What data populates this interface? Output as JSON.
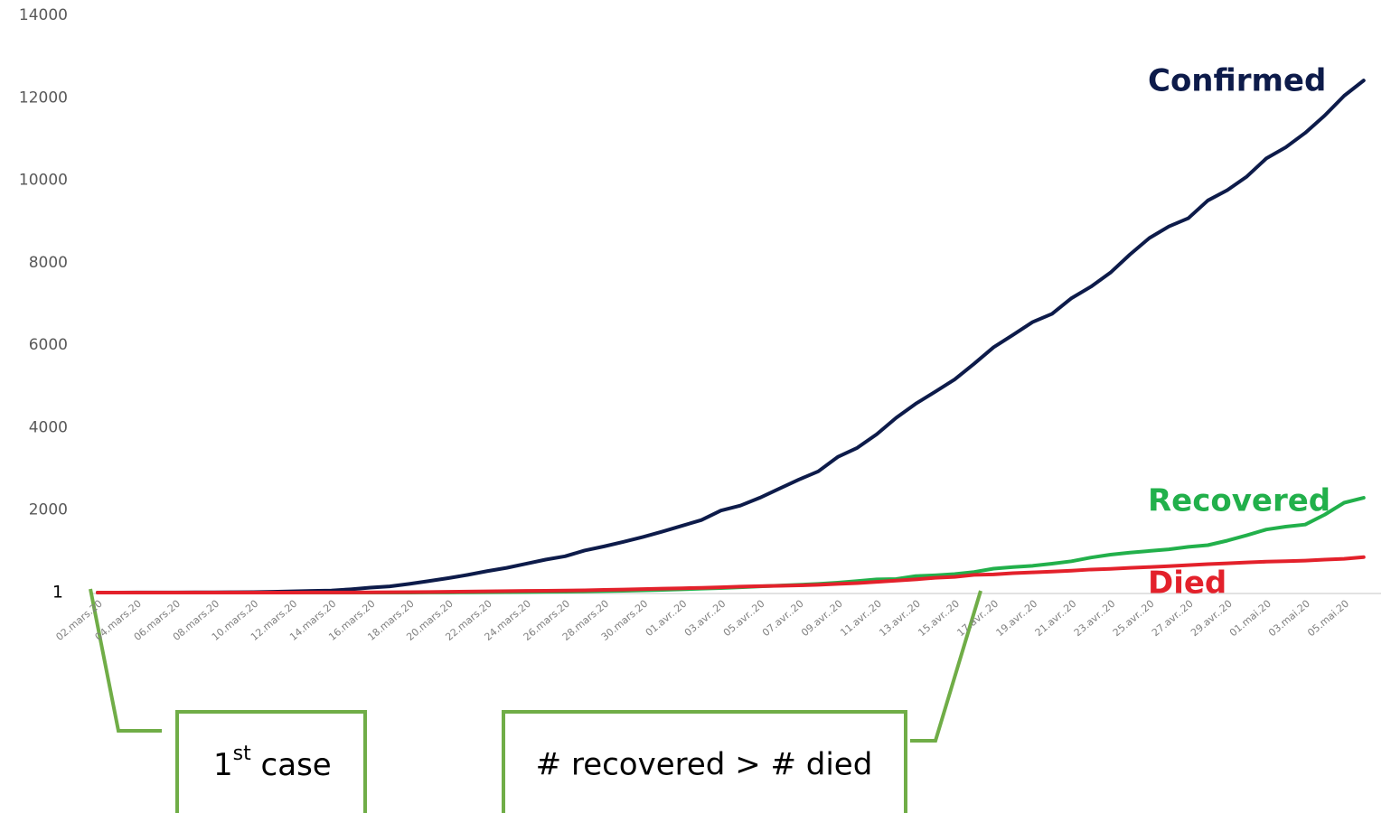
{
  "chart_data": {
    "type": "line",
    "categories": [
      "02.mars.20",
      null,
      "04.mars.20",
      null,
      "06.mars.20",
      null,
      "08.mars.20",
      null,
      "10.mars.20",
      null,
      "12.mars.20",
      null,
      "14.mars.20",
      null,
      "16.mars.20",
      null,
      "18.mars.20",
      null,
      "20.mars.20",
      null,
      "22.mars.20",
      null,
      "24.mars.20",
      null,
      "26.mars.20",
      null,
      "28.mars.20",
      null,
      "30.mars.20",
      null,
      "01.avr..20",
      null,
      "03.avr..20",
      null,
      "05.avr..20",
      null,
      "07.avr..20",
      null,
      "09.avr..20",
      null,
      "11.avr..20",
      null,
      "13.avr..20",
      null,
      "15.avr..20",
      null,
      "17.avr..20",
      null,
      "19.avr..20",
      null,
      "21.avr..20",
      null,
      "23.avr..20",
      null,
      "25.avr..20",
      null,
      "27.avr..20",
      null,
      "29.avr..20",
      null,
      "01.mai.20",
      null,
      "03.mai.20",
      null,
      "05.mai.20",
      null
    ],
    "series": [
      {
        "name": "Confirmed",
        "color": "#0d1b4a",
        "values": [
          1,
          1,
          2,
          2,
          3,
          5,
          6,
          8,
          10,
          20,
          30,
          40,
          50,
          80,
          120,
          150,
          210,
          280,
          350,
          430,
          520,
          600,
          700,
          800,
          880,
          1020,
          1120,
          1230,
          1350,
          1480,
          1620,
          1760,
          1990,
          2110,
          2300,
          2520,
          2740,
          2940,
          3290,
          3510,
          3840,
          4240,
          4580,
          4870,
          5170,
          5550,
          5950,
          6250,
          6560,
          6760,
          7140,
          7420,
          7760,
          8200,
          8600,
          8880,
          9080,
          9510,
          9760,
          10090,
          10530,
          10800,
          11150,
          11570,
          12050,
          12420
        ]
      },
      {
        "name": "Recovered",
        "color": "#22b04b",
        "values": [
          0,
          0,
          0,
          0,
          0,
          0,
          0,
          0,
          0,
          0,
          0,
          0,
          0,
          0,
          0,
          1,
          1,
          2,
          3,
          5,
          8,
          10,
          14,
          18,
          22,
          28,
          35,
          45,
          55,
          65,
          80,
          95,
          110,
          130,
          150,
          170,
          190,
          210,
          240,
          280,
          320,
          330,
          400,
          420,
          450,
          500,
          580,
          620,
          650,
          700,
          760,
          850,
          920,
          970,
          1010,
          1050,
          1110,
          1150,
          1260,
          1390,
          1530,
          1600,
          1650,
          1890,
          2180,
          2300
        ]
      },
      {
        "name": "Died",
        "color": "#e3212b",
        "values": [
          0,
          0,
          0,
          0,
          0,
          0,
          0,
          0,
          0,
          0,
          1,
          2,
          3,
          4,
          5,
          8,
          10,
          15,
          20,
          25,
          30,
          35,
          40,
          45,
          50,
          55,
          65,
          75,
          85,
          95,
          105,
          115,
          130,
          145,
          155,
          165,
          175,
          190,
          210,
          230,
          260,
          290,
          320,
          360,
          380,
          430,
          440,
          470,
          490,
          510,
          530,
          560,
          575,
          600,
          620,
          640,
          665,
          690,
          710,
          730,
          750,
          760,
          775,
          800,
          820,
          860
        ]
      }
    ],
    "ylim": [
      0,
      14000
    ],
    "yticks": [
      1,
      2000,
      4000,
      6000,
      8000,
      10000,
      12000,
      14000
    ],
    "grid": false,
    "annotations": [
      {
        "text": "1",
        "sup": "st",
        "tail": " case"
      },
      {
        "text": "# recovered > # died"
      }
    ]
  }
}
